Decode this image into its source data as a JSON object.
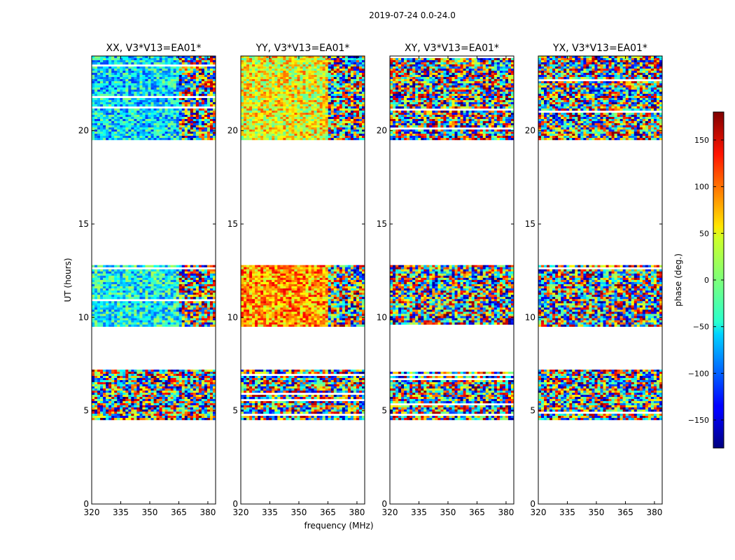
{
  "chart_data": {
    "type": "heatmap",
    "title": "2019-07-24 0.0-24.0",
    "xlabel": "frequency (MHz)",
    "ylabel": "UT (hours)",
    "xlim": [
      320,
      384
    ],
    "ylim": [
      0,
      24
    ],
    "xticks": [
      320,
      335,
      350,
      365,
      380
    ],
    "yticks": [
      0,
      5,
      10,
      15,
      20
    ],
    "panels": [
      {
        "title": "XX, V3*V13=EA01*",
        "pol": "XX"
      },
      {
        "title": "YY, V3*V13=EA01*",
        "pol": "YY"
      },
      {
        "title": "XY, V3*V13=EA01*",
        "pol": "XY"
      },
      {
        "title": "YX, V3*V13=EA01*",
        "pol": "YX"
      }
    ],
    "data_time_blocks_hours": [
      [
        4.5,
        7.2
      ],
      [
        9.5,
        12.8
      ],
      [
        19.5,
        24.0
      ]
    ],
    "colorbar": {
      "label": "phase (deg.)",
      "range": [
        -180,
        180
      ],
      "ticks": [
        -150,
        -100,
        -50,
        0,
        50,
        100,
        150
      ]
    }
  }
}
